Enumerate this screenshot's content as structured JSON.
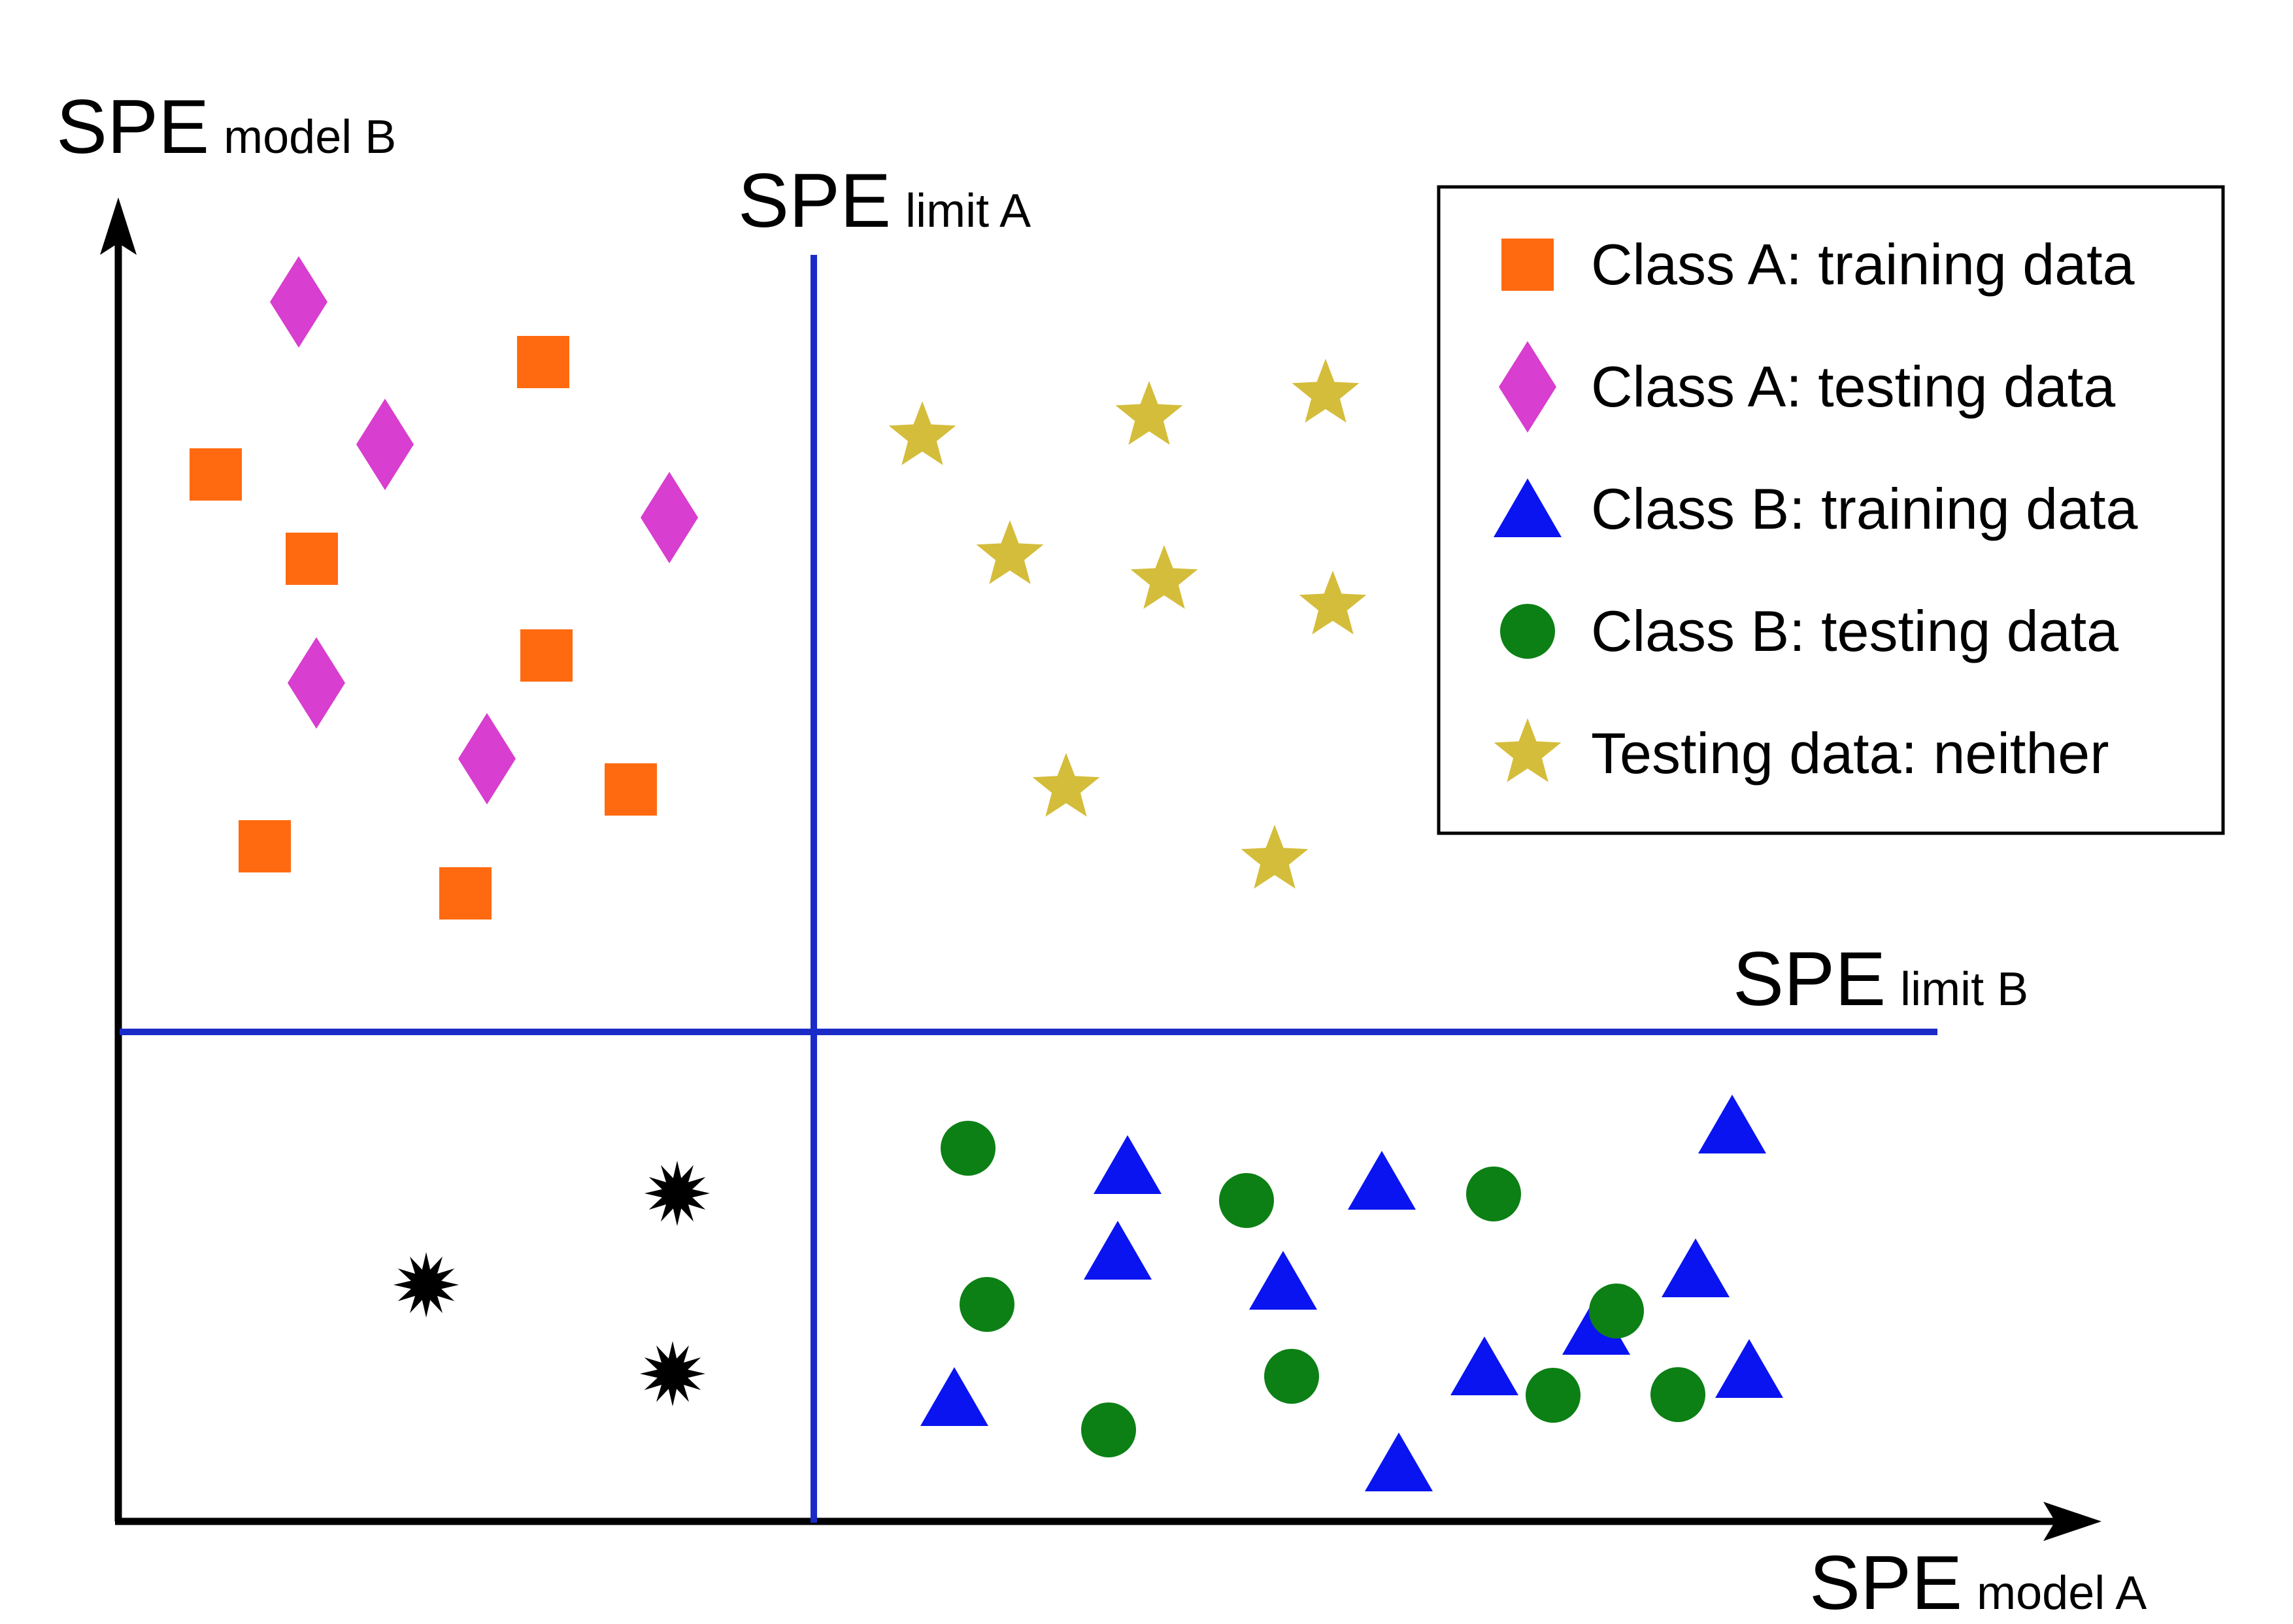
{
  "axes": {
    "y": {
      "main": "SPE",
      "sub": "model B"
    },
    "x": {
      "main": "SPE",
      "sub": "model A"
    }
  },
  "limits": {
    "a": {
      "main": "SPE",
      "sub": "limit A"
    },
    "b": {
      "main": "SPE",
      "sub": "limit B"
    }
  },
  "legend": {
    "items": [
      {
        "label": "Class A: training data",
        "marker": "square",
        "color": "#ff6a10"
      },
      {
        "label": "Class A: testing data",
        "marker": "diamond",
        "color": "#d83ecf"
      },
      {
        "label": "Class B: training data",
        "marker": "triangle",
        "color": "#0a14f0"
      },
      {
        "label": "Class B: testing data",
        "marker": "circle",
        "color": "#0c8015"
      },
      {
        "label": "Testing data: neither",
        "marker": "star",
        "color": "#d4bd3a"
      }
    ]
  },
  "colors": {
    "axis": "#000000",
    "limit_line": "#1a2bc8",
    "both_within_marker": "#000000"
  },
  "icons": {
    "unlabeled_marker": "black-starburst-icon"
  }
}
